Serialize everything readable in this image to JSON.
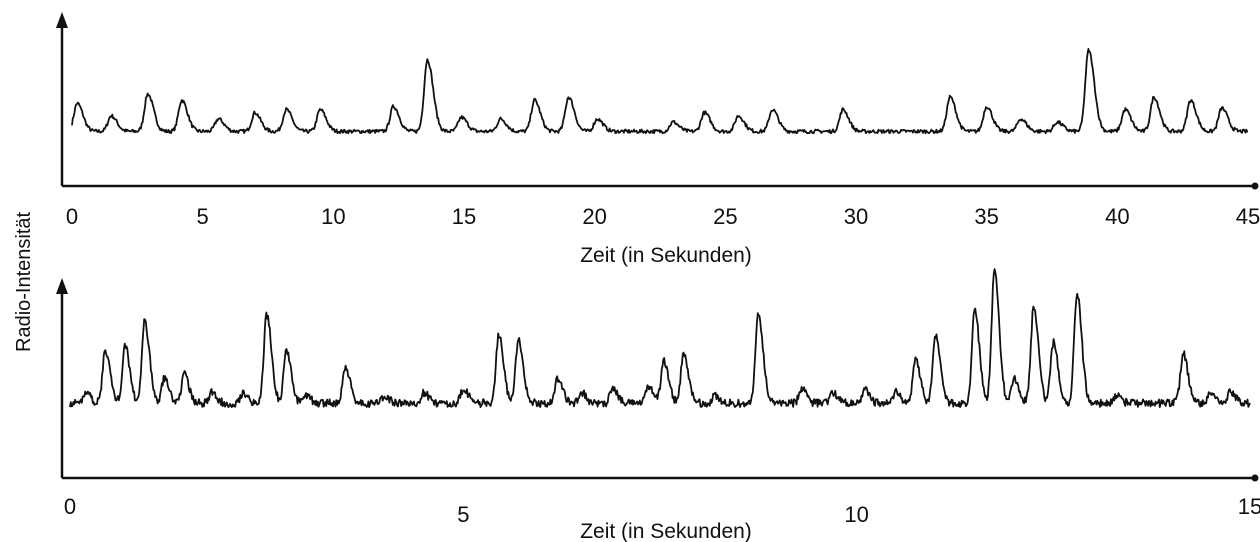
{
  "chart_data": {
    "type": "line",
    "ylabel": "Radio-Intensität",
    "panels": [
      {
        "xlabel": "Zeit (in Sekunden)",
        "xlim": [
          0,
          45
        ],
        "tick_labels": [
          "0",
          "5",
          "10",
          "15",
          "20",
          "25",
          "30",
          "35",
          "40",
          "45"
        ],
        "baseline": 0.35,
        "peaks": [
          {
            "t": 0.2,
            "h": 0.18
          },
          {
            "t": 1.5,
            "h": 0.1
          },
          {
            "t": 2.9,
            "h": 0.24
          },
          {
            "t": 4.2,
            "h": 0.2
          },
          {
            "t": 5.6,
            "h": 0.08
          },
          {
            "t": 7.0,
            "h": 0.12
          },
          {
            "t": 8.2,
            "h": 0.14
          },
          {
            "t": 9.5,
            "h": 0.14
          },
          {
            "t": 12.3,
            "h": 0.16
          },
          {
            "t": 13.6,
            "h": 0.46
          },
          {
            "t": 14.9,
            "h": 0.09
          },
          {
            "t": 16.4,
            "h": 0.08
          },
          {
            "t": 17.7,
            "h": 0.2
          },
          {
            "t": 19.0,
            "h": 0.22
          },
          {
            "t": 20.1,
            "h": 0.08
          },
          {
            "t": 23.0,
            "h": 0.06
          },
          {
            "t": 24.2,
            "h": 0.12
          },
          {
            "t": 25.5,
            "h": 0.1
          },
          {
            "t": 26.8,
            "h": 0.14
          },
          {
            "t": 29.5,
            "h": 0.14
          },
          {
            "t": 33.6,
            "h": 0.22
          },
          {
            "t": 35.0,
            "h": 0.16
          },
          {
            "t": 36.3,
            "h": 0.08
          },
          {
            "t": 37.7,
            "h": 0.06
          },
          {
            "t": 38.9,
            "h": 0.52
          },
          {
            "t": 40.3,
            "h": 0.14
          },
          {
            "t": 41.4,
            "h": 0.22
          },
          {
            "t": 42.8,
            "h": 0.2
          },
          {
            "t": 44.0,
            "h": 0.15
          }
        ]
      },
      {
        "xlabel": "Zeit (in Sekunden)",
        "xlim": [
          0,
          15
        ],
        "tick_labels": [
          "0",
          "5",
          "10",
          "15"
        ],
        "baseline": 0.42,
        "peaks": [
          {
            "t": 0.2,
            "h": 0.06
          },
          {
            "t": 0.45,
            "h": 0.3
          },
          {
            "t": 0.7,
            "h": 0.32
          },
          {
            "t": 0.95,
            "h": 0.46
          },
          {
            "t": 1.2,
            "h": 0.14
          },
          {
            "t": 1.45,
            "h": 0.16
          },
          {
            "t": 1.8,
            "h": 0.06
          },
          {
            "t": 2.2,
            "h": 0.06
          },
          {
            "t": 2.5,
            "h": 0.5
          },
          {
            "t": 2.75,
            "h": 0.3
          },
          {
            "t": 3.0,
            "h": 0.04
          },
          {
            "t": 3.5,
            "h": 0.2
          },
          {
            "t": 4.0,
            "h": 0.04
          },
          {
            "t": 4.5,
            "h": 0.06
          },
          {
            "t": 5.0,
            "h": 0.08
          },
          {
            "t": 5.45,
            "h": 0.38
          },
          {
            "t": 5.7,
            "h": 0.36
          },
          {
            "t": 6.2,
            "h": 0.14
          },
          {
            "t": 6.5,
            "h": 0.06
          },
          {
            "t": 6.9,
            "h": 0.08
          },
          {
            "t": 7.35,
            "h": 0.1
          },
          {
            "t": 7.55,
            "h": 0.24
          },
          {
            "t": 7.8,
            "h": 0.28
          },
          {
            "t": 8.2,
            "h": 0.04
          },
          {
            "t": 8.75,
            "h": 0.5
          },
          {
            "t": 9.3,
            "h": 0.08
          },
          {
            "t": 9.7,
            "h": 0.06
          },
          {
            "t": 10.1,
            "h": 0.08
          },
          {
            "t": 10.5,
            "h": 0.06
          },
          {
            "t": 10.75,
            "h": 0.24
          },
          {
            "t": 11.0,
            "h": 0.38
          },
          {
            "t": 11.5,
            "h": 0.52
          },
          {
            "t": 11.75,
            "h": 0.74
          },
          {
            "t": 12.0,
            "h": 0.14
          },
          {
            "t": 12.25,
            "h": 0.54
          },
          {
            "t": 12.5,
            "h": 0.34
          },
          {
            "t": 12.8,
            "h": 0.62
          },
          {
            "t": 13.3,
            "h": 0.04
          },
          {
            "t": 14.15,
            "h": 0.28
          },
          {
            "t": 14.5,
            "h": 0.06
          },
          {
            "t": 14.75,
            "h": 0.06
          }
        ]
      }
    ]
  }
}
